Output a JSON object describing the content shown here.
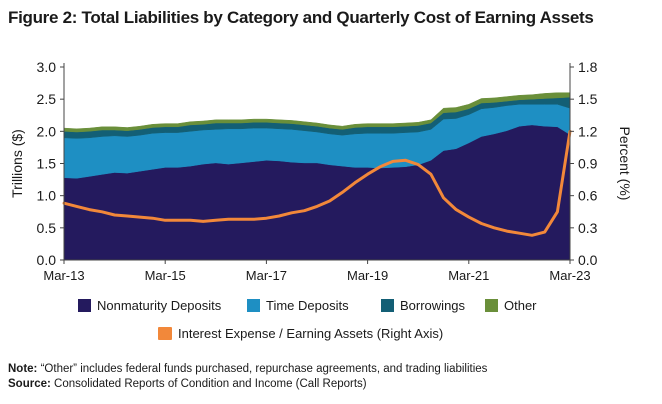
{
  "title": "Figure 2: Total Liabilities by Category and Quarterly Cost of Earning Assets",
  "note_label": "Note:",
  "note_text": "“Other” includes federal funds purchased, repurchase agreements, and trading liabilities",
  "source_label": "Source:",
  "source_text": "Consolidated Reports of Condition and Income (Call Reports)",
  "colors": {
    "nonmaturity": "#241a5e",
    "time": "#1e8fc3",
    "borrowings": "#135f75",
    "other": "#6a8f3a",
    "interest": "#f2883a"
  },
  "chart_data": {
    "type": "area",
    "title": "Figure 2: Total Liabilities by Category and Quarterly Cost of Earning Assets",
    "ylabel": "Trillions ($)",
    "y2label": "Percent (%)",
    "ylim": [
      0,
      3.0
    ],
    "y2lim": [
      0,
      1.8
    ],
    "yticks": [
      "0.0",
      "0.5",
      "1.0",
      "1.5",
      "2.0",
      "2.5",
      "3.0"
    ],
    "y2ticks": [
      "0.0",
      "0.3",
      "0.6",
      "0.9",
      "1.2",
      "1.5",
      "1.8"
    ],
    "xticks": [
      "Mar-13",
      "Mar-15",
      "Mar-17",
      "Mar-19",
      "Mar-21",
      "Mar-23"
    ],
    "xtick_index": [
      0,
      8,
      16,
      24,
      32,
      40
    ],
    "grid": false,
    "legend_position": "bottom",
    "x": [
      "Mar-13",
      "Jun-13",
      "Sep-13",
      "Dec-13",
      "Mar-14",
      "Jun-14",
      "Sep-14",
      "Dec-14",
      "Mar-15",
      "Jun-15",
      "Sep-15",
      "Dec-15",
      "Mar-16",
      "Jun-16",
      "Sep-16",
      "Dec-16",
      "Mar-17",
      "Jun-17",
      "Sep-17",
      "Dec-17",
      "Mar-18",
      "Jun-18",
      "Sep-18",
      "Dec-18",
      "Mar-19",
      "Jun-19",
      "Sep-19",
      "Dec-19",
      "Mar-20",
      "Jun-20",
      "Sep-20",
      "Dec-20",
      "Mar-21",
      "Jun-21",
      "Sep-21",
      "Dec-21",
      "Mar-22",
      "Jun-22",
      "Sep-22",
      "Dec-22",
      "Mar-23"
    ],
    "series": [
      {
        "name": "Nonmaturity Deposits",
        "axis": "left",
        "kind": "stacked-area",
        "values": [
          1.28,
          1.27,
          1.3,
          1.33,
          1.36,
          1.35,
          1.38,
          1.41,
          1.44,
          1.44,
          1.46,
          1.49,
          1.51,
          1.49,
          1.51,
          1.53,
          1.55,
          1.54,
          1.52,
          1.51,
          1.51,
          1.48,
          1.46,
          1.44,
          1.44,
          1.43,
          1.44,
          1.45,
          1.48,
          1.55,
          1.7,
          1.73,
          1.82,
          1.92,
          1.96,
          2.01,
          2.08,
          2.1,
          2.08,
          2.07,
          1.95
        ]
      },
      {
        "name": "Time Deposits",
        "axis": "left",
        "kind": "stacked-area",
        "values": [
          0.62,
          0.62,
          0.6,
          0.59,
          0.57,
          0.57,
          0.56,
          0.56,
          0.54,
          0.54,
          0.54,
          0.53,
          0.52,
          0.55,
          0.53,
          0.52,
          0.5,
          0.5,
          0.51,
          0.5,
          0.48,
          0.48,
          0.48,
          0.52,
          0.53,
          0.54,
          0.53,
          0.53,
          0.51,
          0.48,
          0.49,
          0.47,
          0.44,
          0.43,
          0.41,
          0.39,
          0.34,
          0.32,
          0.34,
          0.35,
          0.41
        ]
      },
      {
        "name": "Borrowings",
        "axis": "left",
        "kind": "stacked-area",
        "values": [
          0.1,
          0.1,
          0.1,
          0.1,
          0.09,
          0.09,
          0.09,
          0.09,
          0.09,
          0.09,
          0.1,
          0.09,
          0.1,
          0.09,
          0.09,
          0.09,
          0.09,
          0.09,
          0.09,
          0.09,
          0.09,
          0.09,
          0.09,
          0.1,
          0.1,
          0.1,
          0.1,
          0.1,
          0.1,
          0.1,
          0.1,
          0.1,
          0.09,
          0.09,
          0.08,
          0.07,
          0.07,
          0.08,
          0.09,
          0.1,
          0.17
        ]
      },
      {
        "name": "Other",
        "axis": "left",
        "kind": "stacked-area",
        "values": [
          0.05,
          0.05,
          0.05,
          0.05,
          0.05,
          0.05,
          0.05,
          0.05,
          0.05,
          0.05,
          0.05,
          0.05,
          0.05,
          0.05,
          0.05,
          0.05,
          0.05,
          0.05,
          0.05,
          0.05,
          0.05,
          0.05,
          0.05,
          0.05,
          0.05,
          0.05,
          0.05,
          0.05,
          0.05,
          0.05,
          0.07,
          0.07,
          0.07,
          0.07,
          0.07,
          0.07,
          0.07,
          0.07,
          0.08,
          0.08,
          0.07
        ]
      },
      {
        "name": "Interest Expense / Earning Assets (Right Axis)",
        "axis": "right",
        "kind": "line",
        "values": [
          0.53,
          0.5,
          0.47,
          0.45,
          0.42,
          0.41,
          0.4,
          0.39,
          0.37,
          0.37,
          0.37,
          0.36,
          0.37,
          0.38,
          0.38,
          0.38,
          0.39,
          0.41,
          0.44,
          0.46,
          0.5,
          0.55,
          0.63,
          0.72,
          0.8,
          0.87,
          0.92,
          0.93,
          0.89,
          0.8,
          0.58,
          0.47,
          0.4,
          0.34,
          0.3,
          0.27,
          0.25,
          0.23,
          0.26,
          0.45,
          1.2
        ]
      }
    ]
  }
}
